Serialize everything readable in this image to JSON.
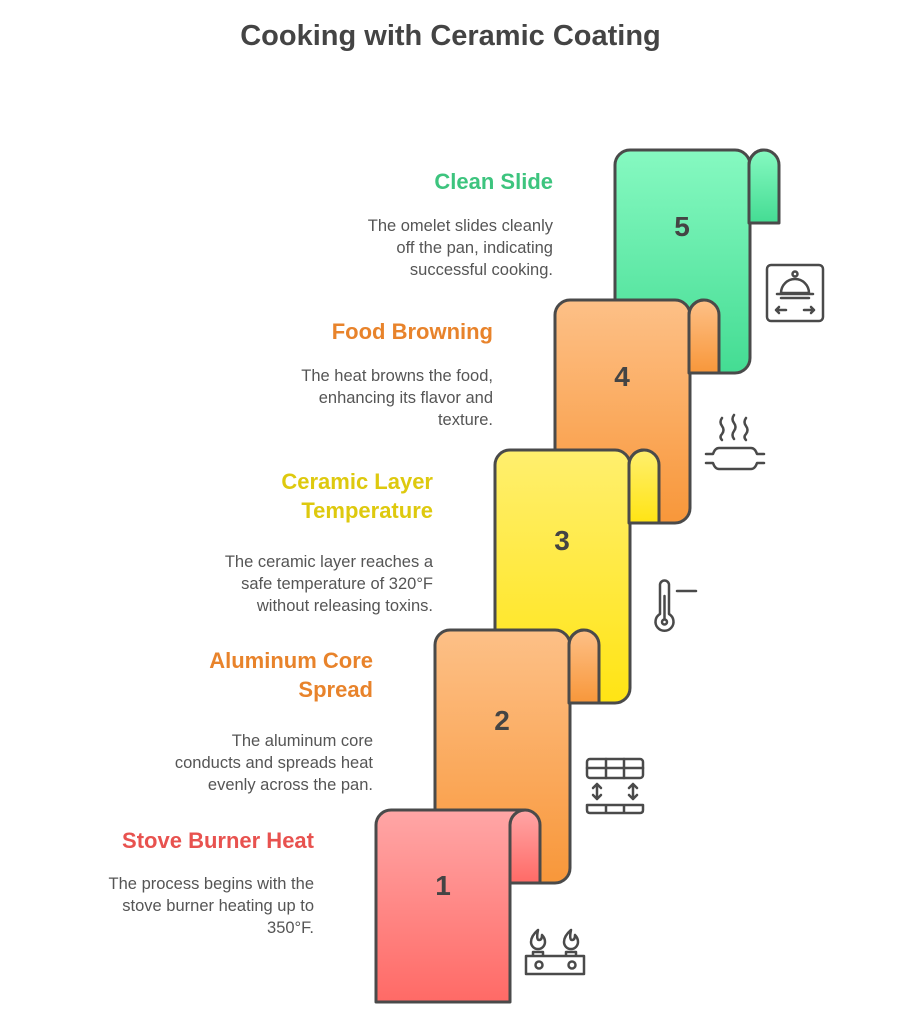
{
  "title": "Cooking with Ceramic Coating",
  "colors": {
    "stroke": "#4a4a4a",
    "text": "#555555"
  },
  "steps": [
    {
      "number": "1",
      "title": "Stove Burner Heat",
      "description": [
        "The process begins with the",
        "stove burner heating up to",
        "350°F."
      ],
      "title_color": "#E8524F",
      "fill_top": "#FFA6A6",
      "fill_bottom": "#FF6A66",
      "icon": "stove-burner-icon"
    },
    {
      "number": "2",
      "title": [
        "Aluminum Core",
        "Spread"
      ],
      "description": [
        "The aluminum core",
        "conducts and spreads heat",
        "evenly across the pan."
      ],
      "title_color": "#E8832B",
      "fill_top": "#FDC087",
      "fill_bottom": "#F8973A",
      "icon": "heat-spread-icon"
    },
    {
      "number": "3",
      "title": [
        "Ceramic Layer",
        "Temperature"
      ],
      "description": [
        "The ceramic layer reaches a",
        "safe temperature of 320°F",
        "without releasing toxins."
      ],
      "title_color": "#DEC90E",
      "fill_top": "#FFEF6E",
      "fill_bottom": "#FFE414",
      "icon": "thermometer-icon"
    },
    {
      "number": "4",
      "title": "Food Browning",
      "description": [
        "The heat browns the food,",
        "enhancing its flavor and",
        "texture."
      ],
      "title_color": "#E8832B",
      "fill_top": "#FDC087",
      "fill_bottom": "#F8973A",
      "icon": "steaming-food-icon"
    },
    {
      "number": "5",
      "title": "Clean Slide",
      "description": [
        "The omelet slides cleanly",
        "off the pan, indicating",
        "successful cooking."
      ],
      "title_color": "#3DC47E",
      "fill_top": "#86F9C1",
      "fill_bottom": "#44DC93",
      "icon": "serving-cloche-icon"
    }
  ]
}
